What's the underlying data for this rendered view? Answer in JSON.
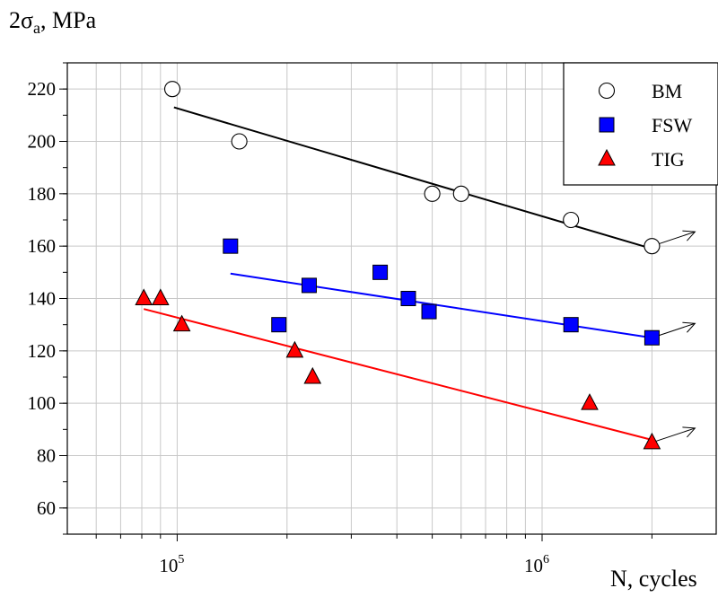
{
  "chart_data": {
    "type": "scatter",
    "title": "",
    "ylabel": "2σa, MPa",
    "xlabel": "N, cycles",
    "x_scale": "log",
    "xlim": [
      50000,
      3000000
    ],
    "ylim": [
      50,
      230
    ],
    "y_ticks": [
      60,
      80,
      100,
      120,
      140,
      160,
      180,
      200,
      220
    ],
    "x_tick_labels": [
      {
        "value": 100000,
        "base": "10",
        "exp": "5"
      },
      {
        "value": 1000000,
        "base": "10",
        "exp": "6"
      }
    ],
    "grid": true,
    "legend_position": "top-right",
    "series": [
      {
        "name": "BM",
        "marker": "circle",
        "color": "#ffffff",
        "line_color": "#000000",
        "x": [
          97000,
          148000,
          500000,
          600000,
          1200000,
          2000000
        ],
        "y": [
          220,
          200,
          180,
          180,
          170,
          160
        ],
        "fit": {
          "x": [
            98000,
            2000000
          ],
          "y": [
            213,
            159
          ]
        },
        "runout": [
          2000000
        ]
      },
      {
        "name": "FSW",
        "marker": "square",
        "color": "#0000ff",
        "line_color": "#0000ff",
        "x": [
          140000,
          190000,
          230000,
          360000,
          430000,
          490000,
          1200000,
          2000000
        ],
        "y": [
          160,
          130,
          145,
          150,
          140,
          135,
          130,
          125
        ],
        "fit": {
          "x": [
            140000,
            2000000
          ],
          "y": [
            149.5,
            125
          ]
        },
        "runout": [
          2000000
        ]
      },
      {
        "name": "TIG",
        "marker": "triangle",
        "color": "#ff0000",
        "line_color": "#ff0000",
        "x": [
          81000,
          90000,
          103000,
          210000,
          235000,
          1350000,
          2000000
        ],
        "y": [
          140,
          140,
          130,
          120,
          110,
          100,
          85
        ],
        "fit": {
          "x": [
            81000,
            2000000
          ],
          "y": [
            136,
            86
          ]
        },
        "runout": [
          2000000
        ]
      }
    ]
  }
}
